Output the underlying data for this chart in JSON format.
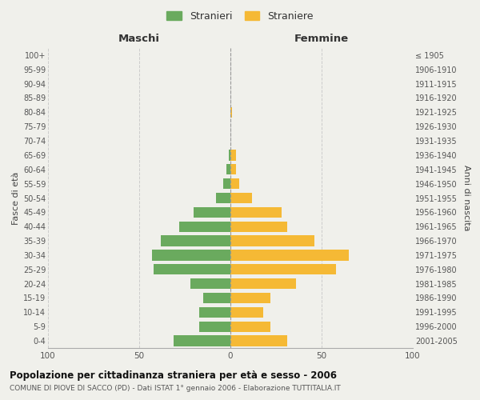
{
  "age_groups": [
    "100+",
    "95-99",
    "90-94",
    "85-89",
    "80-84",
    "75-79",
    "70-74",
    "65-69",
    "60-64",
    "55-59",
    "50-54",
    "45-49",
    "40-44",
    "35-39",
    "30-34",
    "25-29",
    "20-24",
    "15-19",
    "10-14",
    "5-9",
    "0-4"
  ],
  "birth_years": [
    "≤ 1905",
    "1906-1910",
    "1911-1915",
    "1916-1920",
    "1921-1925",
    "1926-1930",
    "1931-1935",
    "1936-1940",
    "1941-1945",
    "1946-1950",
    "1951-1955",
    "1956-1960",
    "1961-1965",
    "1966-1970",
    "1971-1975",
    "1976-1980",
    "1981-1985",
    "1986-1990",
    "1991-1995",
    "1996-2000",
    "2001-2005"
  ],
  "males": [
    0,
    0,
    0,
    0,
    0,
    0,
    0,
    1,
    2,
    4,
    8,
    20,
    28,
    38,
    43,
    42,
    22,
    15,
    17,
    17,
    31
  ],
  "females": [
    0,
    0,
    0,
    0,
    1,
    0,
    0,
    3,
    3,
    5,
    12,
    28,
    31,
    46,
    65,
    58,
    36,
    22,
    18,
    22,
    31
  ],
  "male_color": "#6aaa5e",
  "female_color": "#f5b935",
  "background_color": "#f0f0eb",
  "title": "Popolazione per cittadinanza straniera per età e sesso - 2006",
  "subtitle": "COMUNE DI PIOVE DI SACCO (PD) - Dati ISTAT 1° gennaio 2006 - Elaborazione TUTTITALIA.IT",
  "xlabel_left": "Maschi",
  "xlabel_right": "Femmine",
  "ylabel_left": "Fasce di età",
  "ylabel_right": "Anni di nascita",
  "legend_male": "Stranieri",
  "legend_female": "Straniere",
  "xlim": 100,
  "bar_height": 0.75
}
